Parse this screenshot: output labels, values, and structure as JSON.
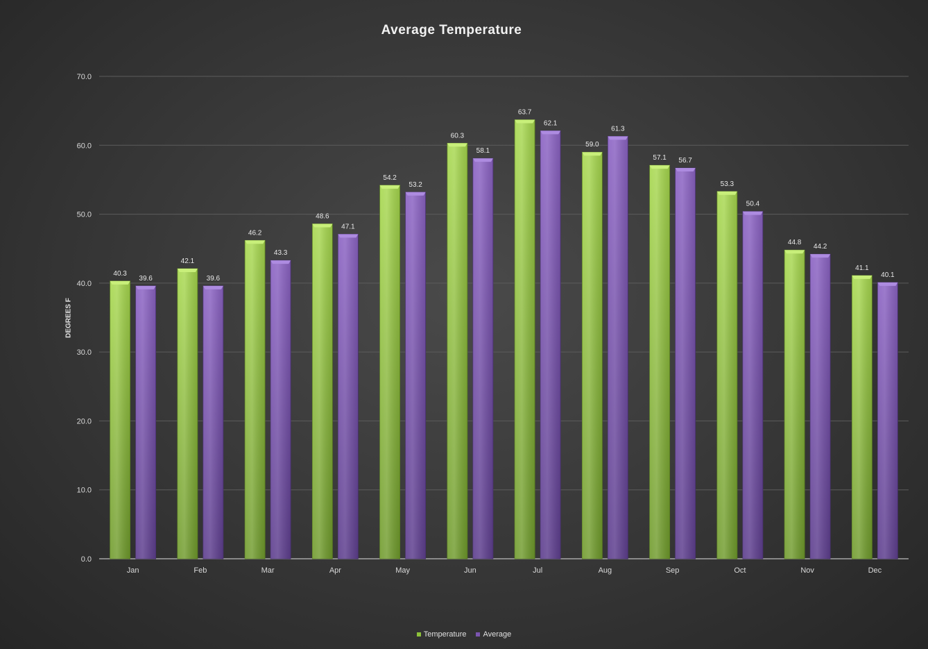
{
  "chart_data": {
    "type": "bar",
    "title": "Average Temperature",
    "xlabel": "",
    "ylabel": "DEGREES F",
    "ylim": [
      0,
      70
    ],
    "yticks": [
      "0.0",
      "10.0",
      "20.0",
      "30.0",
      "40.0",
      "50.0",
      "60.0",
      "70.0"
    ],
    "grid": true,
    "legend_position": "bottom",
    "categories": [
      "Jan",
      "Feb",
      "Mar",
      "Apr",
      "May",
      "Jun",
      "Jul",
      "Aug",
      "Sep",
      "Oct",
      "Nov",
      "Dec"
    ],
    "series": [
      {
        "name": "Temperature",
        "color": "#8dc23a",
        "values": [
          40.3,
          42.1,
          46.2,
          48.6,
          54.2,
          60.3,
          63.7,
          59.0,
          57.1,
          53.3,
          44.8,
          41.1
        ],
        "labels": [
          "40.3",
          "42.1",
          "46.2",
          "48.6",
          "54.2",
          "60.3",
          "63.7",
          "59.0",
          "57.1",
          "53.3",
          "44.8",
          "41.1"
        ]
      },
      {
        "name": "Average",
        "color": "#7b55b0",
        "values": [
          39.6,
          39.6,
          43.3,
          47.1,
          53.2,
          58.1,
          62.1,
          61.3,
          56.7,
          50.4,
          44.2,
          40.1
        ],
        "labels": [
          "39.6",
          "39.6",
          "43.3",
          "47.1",
          "53.2",
          "58.1",
          "62.1",
          "61.3",
          "56.7",
          "50.4",
          "44.2",
          "40.1"
        ]
      }
    ]
  }
}
